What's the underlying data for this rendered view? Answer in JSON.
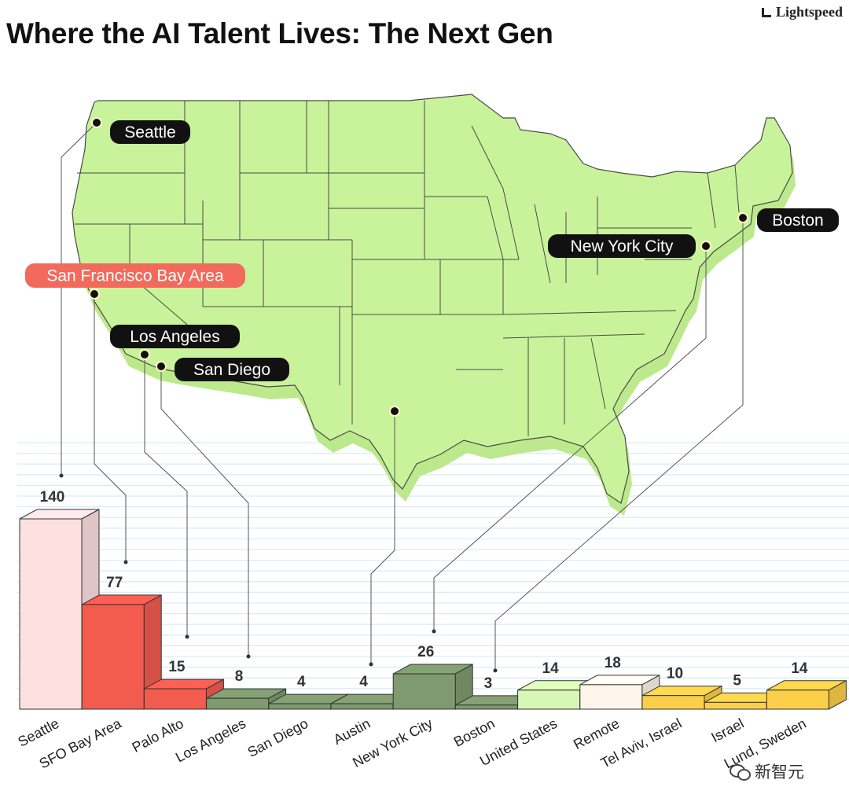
{
  "header": {
    "title": "Where the AI Talent Lives: The Next Gen",
    "brand": "Lightspeed"
  },
  "watermark": {
    "text": "新智元"
  },
  "colors": {
    "map_fill": "#c9f39a",
    "map_shadow": "#bde98d",
    "map_stroke": "#4a4a4a",
    "grid_line": "#d6eef7",
    "pin": "#111111",
    "city_tag": "#111111",
    "city_tag_highlight": "#f26a5c"
  },
  "map_pins": [
    {
      "id": "seattle",
      "label": "Seattle",
      "highlight": false
    },
    {
      "id": "sfo",
      "label": "San Francisco Bay Area",
      "highlight": true
    },
    {
      "id": "los-angeles",
      "label": "Los Angeles",
      "highlight": false
    },
    {
      "id": "san-diego",
      "label": "San Diego",
      "highlight": false
    },
    {
      "id": "austin",
      "label": "",
      "highlight": false
    },
    {
      "id": "new-york-city",
      "label": "New York City",
      "highlight": false
    },
    {
      "id": "boston",
      "label": "Boston",
      "highlight": false
    }
  ],
  "chart_data": {
    "type": "bar",
    "title": "Where the AI Talent Lives: The Next Gen",
    "xlabel": "",
    "ylabel": "",
    "grid": true,
    "ylim": [
      0,
      140
    ],
    "categories": [
      "Seattle",
      "SFO Bay Area",
      "Palo Alto",
      "Los Angeles",
      "San Diego",
      "Austin",
      "New York City",
      "Boston",
      "United States",
      "Remote",
      "Tel Aviv, Israel",
      "Israel",
      "Lund, Sweden"
    ],
    "values": [
      140,
      77,
      15,
      8,
      4,
      4,
      26,
      3,
      14,
      18,
      10,
      5,
      14
    ],
    "bar_colors": [
      "#fde0e0",
      "#f25c4f",
      "#f25c4f",
      "#7f9a6e",
      "#7f9a6e",
      "#7f9a6e",
      "#7f9a6e",
      "#7f9a6e",
      "#d6f7b5",
      "#fdf4ea",
      "#fccf4a",
      "#fccf4a",
      "#fccf4a"
    ]
  }
}
